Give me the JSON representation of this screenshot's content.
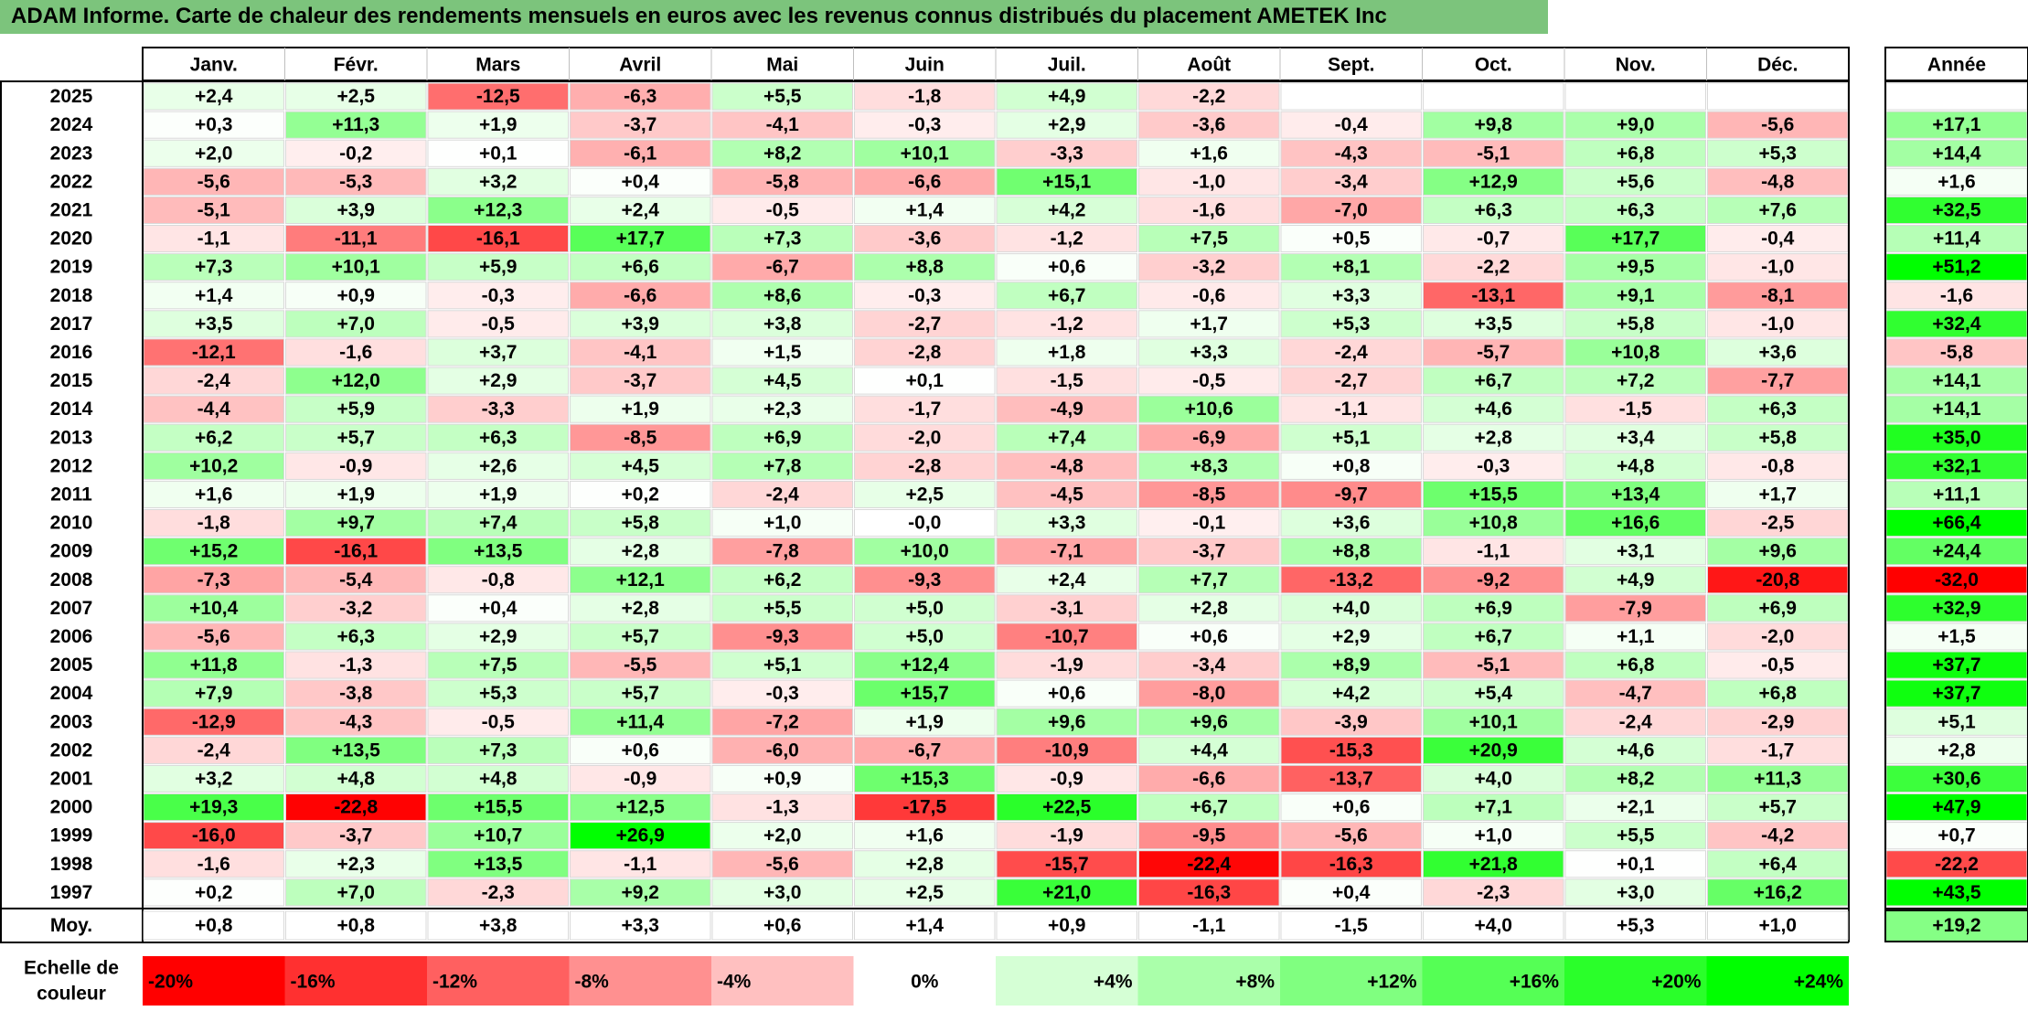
{
  "title": "ADAM Informe. Carte de chaleur des rendements mensuels en euros avec les revenus connus distribués du placement AMETEK Inc",
  "colors": {
    "negative_max": "#ff0000",
    "neutral": "#ffffff",
    "positive_max": "#00ff00",
    "title_bar": "#7cc47c"
  },
  "chart_data": {
    "type": "heatmap",
    "months": [
      "Janv.",
      "Févr.",
      "Mars",
      "Avril",
      "Mai",
      "Juin",
      "Juil.",
      "Août",
      "Sept.",
      "Oct.",
      "Nov.",
      "Déc."
    ],
    "year_column_label": "Année",
    "average_row_label": "Moy.",
    "scale_label": "Echelle de couleur",
    "rows": [
      {
        "year": "2025",
        "values": [
          "+2,4",
          "+2,5",
          "-12,5",
          "-6,3",
          "+5,5",
          "-1,8",
          "+4,9",
          "-2,2",
          "",
          "",
          "",
          ""
        ],
        "annual": ""
      },
      {
        "year": "2024",
        "values": [
          "+0,3",
          "+11,3",
          "+1,9",
          "-3,7",
          "-4,1",
          "-0,3",
          "+2,9",
          "-3,6",
          "-0,4",
          "+9,8",
          "+9,0",
          "-5,6"
        ],
        "annual": "+17,1"
      },
      {
        "year": "2023",
        "values": [
          "+2,0",
          "-0,2",
          "+0,1",
          "-6,1",
          "+8,2",
          "+10,1",
          "-3,3",
          "+1,6",
          "-4,3",
          "-5,1",
          "+6,8",
          "+5,3"
        ],
        "annual": "+14,4"
      },
      {
        "year": "2022",
        "values": [
          "-5,6",
          "-5,3",
          "+3,2",
          "+0,4",
          "-5,8",
          "-6,6",
          "+15,1",
          "-1,0",
          "-3,4",
          "+12,9",
          "+5,6",
          "-4,8"
        ],
        "annual": "+1,6"
      },
      {
        "year": "2021",
        "values": [
          "-5,1",
          "+3,9",
          "+12,3",
          "+2,4",
          "-0,5",
          "+1,4",
          "+4,2",
          "-1,6",
          "-7,0",
          "+6,3",
          "+6,3",
          "+7,6"
        ],
        "annual": "+32,5"
      },
      {
        "year": "2020",
        "values": [
          "-1,1",
          "-11,1",
          "-16,1",
          "+17,7",
          "+7,3",
          "-3,6",
          "-1,2",
          "+7,5",
          "+0,5",
          "-0,7",
          "+17,7",
          "-0,4"
        ],
        "annual": "+11,4"
      },
      {
        "year": "2019",
        "values": [
          "+7,3",
          "+10,1",
          "+5,9",
          "+6,6",
          "-6,7",
          "+8,8",
          "+0,6",
          "-3,2",
          "+8,1",
          "-2,2",
          "+9,5",
          "-1,0"
        ],
        "annual": "+51,2"
      },
      {
        "year": "2018",
        "values": [
          "+1,4",
          "+0,9",
          "-0,3",
          "-6,6",
          "+8,6",
          "-0,3",
          "+6,7",
          "-0,6",
          "+3,3",
          "-13,1",
          "+9,1",
          "-8,1"
        ],
        "annual": "-1,6"
      },
      {
        "year": "2017",
        "values": [
          "+3,5",
          "+7,0",
          "-0,5",
          "+3,9",
          "+3,8",
          "-2,7",
          "-1,2",
          "+1,7",
          "+5,3",
          "+3,5",
          "+5,8",
          "-1,0"
        ],
        "annual": "+32,4"
      },
      {
        "year": "2016",
        "values": [
          "-12,1",
          "-1,6",
          "+3,7",
          "-4,1",
          "+1,5",
          "-2,8",
          "+1,8",
          "+3,3",
          "-2,4",
          "-5,7",
          "+10,8",
          "+3,6"
        ],
        "annual": "-5,8"
      },
      {
        "year": "2015",
        "values": [
          "-2,4",
          "+12,0",
          "+2,9",
          "-3,7",
          "+4,5",
          "+0,1",
          "-1,5",
          "-0,5",
          "-2,7",
          "+6,7",
          "+7,2",
          "-7,7"
        ],
        "annual": "+14,1"
      },
      {
        "year": "2014",
        "values": [
          "-4,4",
          "+5,9",
          "-3,3",
          "+1,9",
          "+2,3",
          "-1,7",
          "-4,9",
          "+10,6",
          "-1,1",
          "+4,6",
          "-1,5",
          "+6,3"
        ],
        "annual": "+14,1"
      },
      {
        "year": "2013",
        "values": [
          "+6,2",
          "+5,7",
          "+6,3",
          "-8,5",
          "+6,9",
          "-2,0",
          "+7,4",
          "-6,9",
          "+5,1",
          "+2,8",
          "+3,4",
          "+5,8"
        ],
        "annual": "+35,0"
      },
      {
        "year": "2012",
        "values": [
          "+10,2",
          "-0,9",
          "+2,6",
          "+4,5",
          "+7,8",
          "-2,8",
          "-4,8",
          "+8,3",
          "+0,8",
          "-0,3",
          "+4,8",
          "-0,8"
        ],
        "annual": "+32,1"
      },
      {
        "year": "2011",
        "values": [
          "+1,6",
          "+1,9",
          "+1,9",
          "+0,2",
          "-2,4",
          "+2,5",
          "-4,5",
          "-8,5",
          "-9,7",
          "+15,5",
          "+13,4",
          "+1,7"
        ],
        "annual": "+11,1"
      },
      {
        "year": "2010",
        "values": [
          "-1,8",
          "+9,7",
          "+7,4",
          "+5,8",
          "+1,0",
          "-0,0",
          "+3,3",
          "-0,1",
          "+3,6",
          "+10,8",
          "+16,6",
          "-2,5"
        ],
        "annual": "+66,4"
      },
      {
        "year": "2009",
        "values": [
          "+15,2",
          "-16,1",
          "+13,5",
          "+2,8",
          "-7,8",
          "+10,0",
          "-7,1",
          "-3,7",
          "+8,8",
          "-1,1",
          "+3,1",
          "+9,6"
        ],
        "annual": "+24,4"
      },
      {
        "year": "2008",
        "values": [
          "-7,3",
          "-5,4",
          "-0,8",
          "+12,1",
          "+6,2",
          "-9,3",
          "+2,4",
          "+7,7",
          "-13,2",
          "-9,2",
          "+4,9",
          "-20,8"
        ],
        "annual": "-32,0"
      },
      {
        "year": "2007",
        "values": [
          "+10,4",
          "-3,2",
          "+0,4",
          "+2,8",
          "+5,5",
          "+5,0",
          "-3,1",
          "+2,8",
          "+4,0",
          "+6,9",
          "-7,9",
          "+6,9"
        ],
        "annual": "+32,9"
      },
      {
        "year": "2006",
        "values": [
          "-5,6",
          "+6,3",
          "+2,9",
          "+5,7",
          "-9,3",
          "+5,0",
          "-10,7",
          "+0,6",
          "+2,9",
          "+6,7",
          "+1,1",
          "-2,0"
        ],
        "annual": "+1,5"
      },
      {
        "year": "2005",
        "values": [
          "+11,8",
          "-1,3",
          "+7,5",
          "-5,5",
          "+5,1",
          "+12,4",
          "-1,9",
          "-3,4",
          "+8,9",
          "-5,1",
          "+6,8",
          "-0,5"
        ],
        "annual": "+37,7"
      },
      {
        "year": "2004",
        "values": [
          "+7,9",
          "-3,8",
          "+5,3",
          "+5,7",
          "-0,3",
          "+15,7",
          "+0,6",
          "-8,0",
          "+4,2",
          "+5,4",
          "-4,7",
          "+6,8"
        ],
        "annual": "+37,7"
      },
      {
        "year": "2003",
        "values": [
          "-12,9",
          "-4,3",
          "-0,5",
          "+11,4",
          "-7,2",
          "+1,9",
          "+9,6",
          "+9,6",
          "-3,9",
          "+10,1",
          "-2,4",
          "-2,9"
        ],
        "annual": "+5,1"
      },
      {
        "year": "2002",
        "values": [
          "-2,4",
          "+13,5",
          "+7,3",
          "+0,6",
          "-6,0",
          "-6,7",
          "-10,9",
          "+4,4",
          "-15,3",
          "+20,9",
          "+4,6",
          "-1,7"
        ],
        "annual": "+2,8"
      },
      {
        "year": "2001",
        "values": [
          "+3,2",
          "+4,8",
          "+4,8",
          "-0,9",
          "+0,9",
          "+15,3",
          "-0,9",
          "-6,6",
          "-13,7",
          "+4,0",
          "+8,2",
          "+11,3"
        ],
        "annual": "+30,6"
      },
      {
        "year": "2000",
        "values": [
          "+19,3",
          "-22,8",
          "+15,5",
          "+12,5",
          "-1,3",
          "-17,5",
          "+22,5",
          "+6,7",
          "+0,6",
          "+7,1",
          "+2,1",
          "+5,7"
        ],
        "annual": "+47,9"
      },
      {
        "year": "1999",
        "values": [
          "-16,0",
          "-3,7",
          "+10,7",
          "+26,9",
          "+2,0",
          "+1,6",
          "-1,9",
          "-9,5",
          "-5,6",
          "+1,0",
          "+5,5",
          "-4,2"
        ],
        "annual": "+0,7"
      },
      {
        "year": "1998",
        "values": [
          "-1,6",
          "+2,3",
          "+13,5",
          "-1,1",
          "-5,6",
          "+2,8",
          "-15,7",
          "-22,4",
          "-16,3",
          "+21,8",
          "+0,1",
          "+6,4"
        ],
        "annual": "-22,2"
      },
      {
        "year": "1997",
        "values": [
          "+0,2",
          "+7,0",
          "-2,3",
          "+9,2",
          "+3,0",
          "+2,5",
          "+21,0",
          "-16,3",
          "+0,4",
          "-2,3",
          "+3,0",
          "+16,2"
        ],
        "annual": "+43,5"
      }
    ],
    "averages": [
      "+0,8",
      "+0,8",
      "+3,8",
      "+3,3",
      "+0,6",
      "+1,4",
      "+0,9",
      "-1,1",
      "-1,5",
      "+4,0",
      "+5,3",
      "+1,0"
    ],
    "average_annual": "+19,2",
    "scale": [
      {
        "label": "-20%",
        "value": -20
      },
      {
        "label": "-16%",
        "value": -16
      },
      {
        "label": "-12%",
        "value": -12
      },
      {
        "label": "-8%",
        "value": -8
      },
      {
        "label": "-4%",
        "value": -4
      },
      {
        "label": "0%",
        "value": 0
      },
      {
        "label": "+4%",
        "value": 4
      },
      {
        "label": "+8%",
        "value": 8
      },
      {
        "label": "+12%",
        "value": 12
      },
      {
        "label": "+16%",
        "value": 16
      },
      {
        "label": "+20%",
        "value": 20
      },
      {
        "label": "+24%",
        "value": 24
      }
    ]
  }
}
